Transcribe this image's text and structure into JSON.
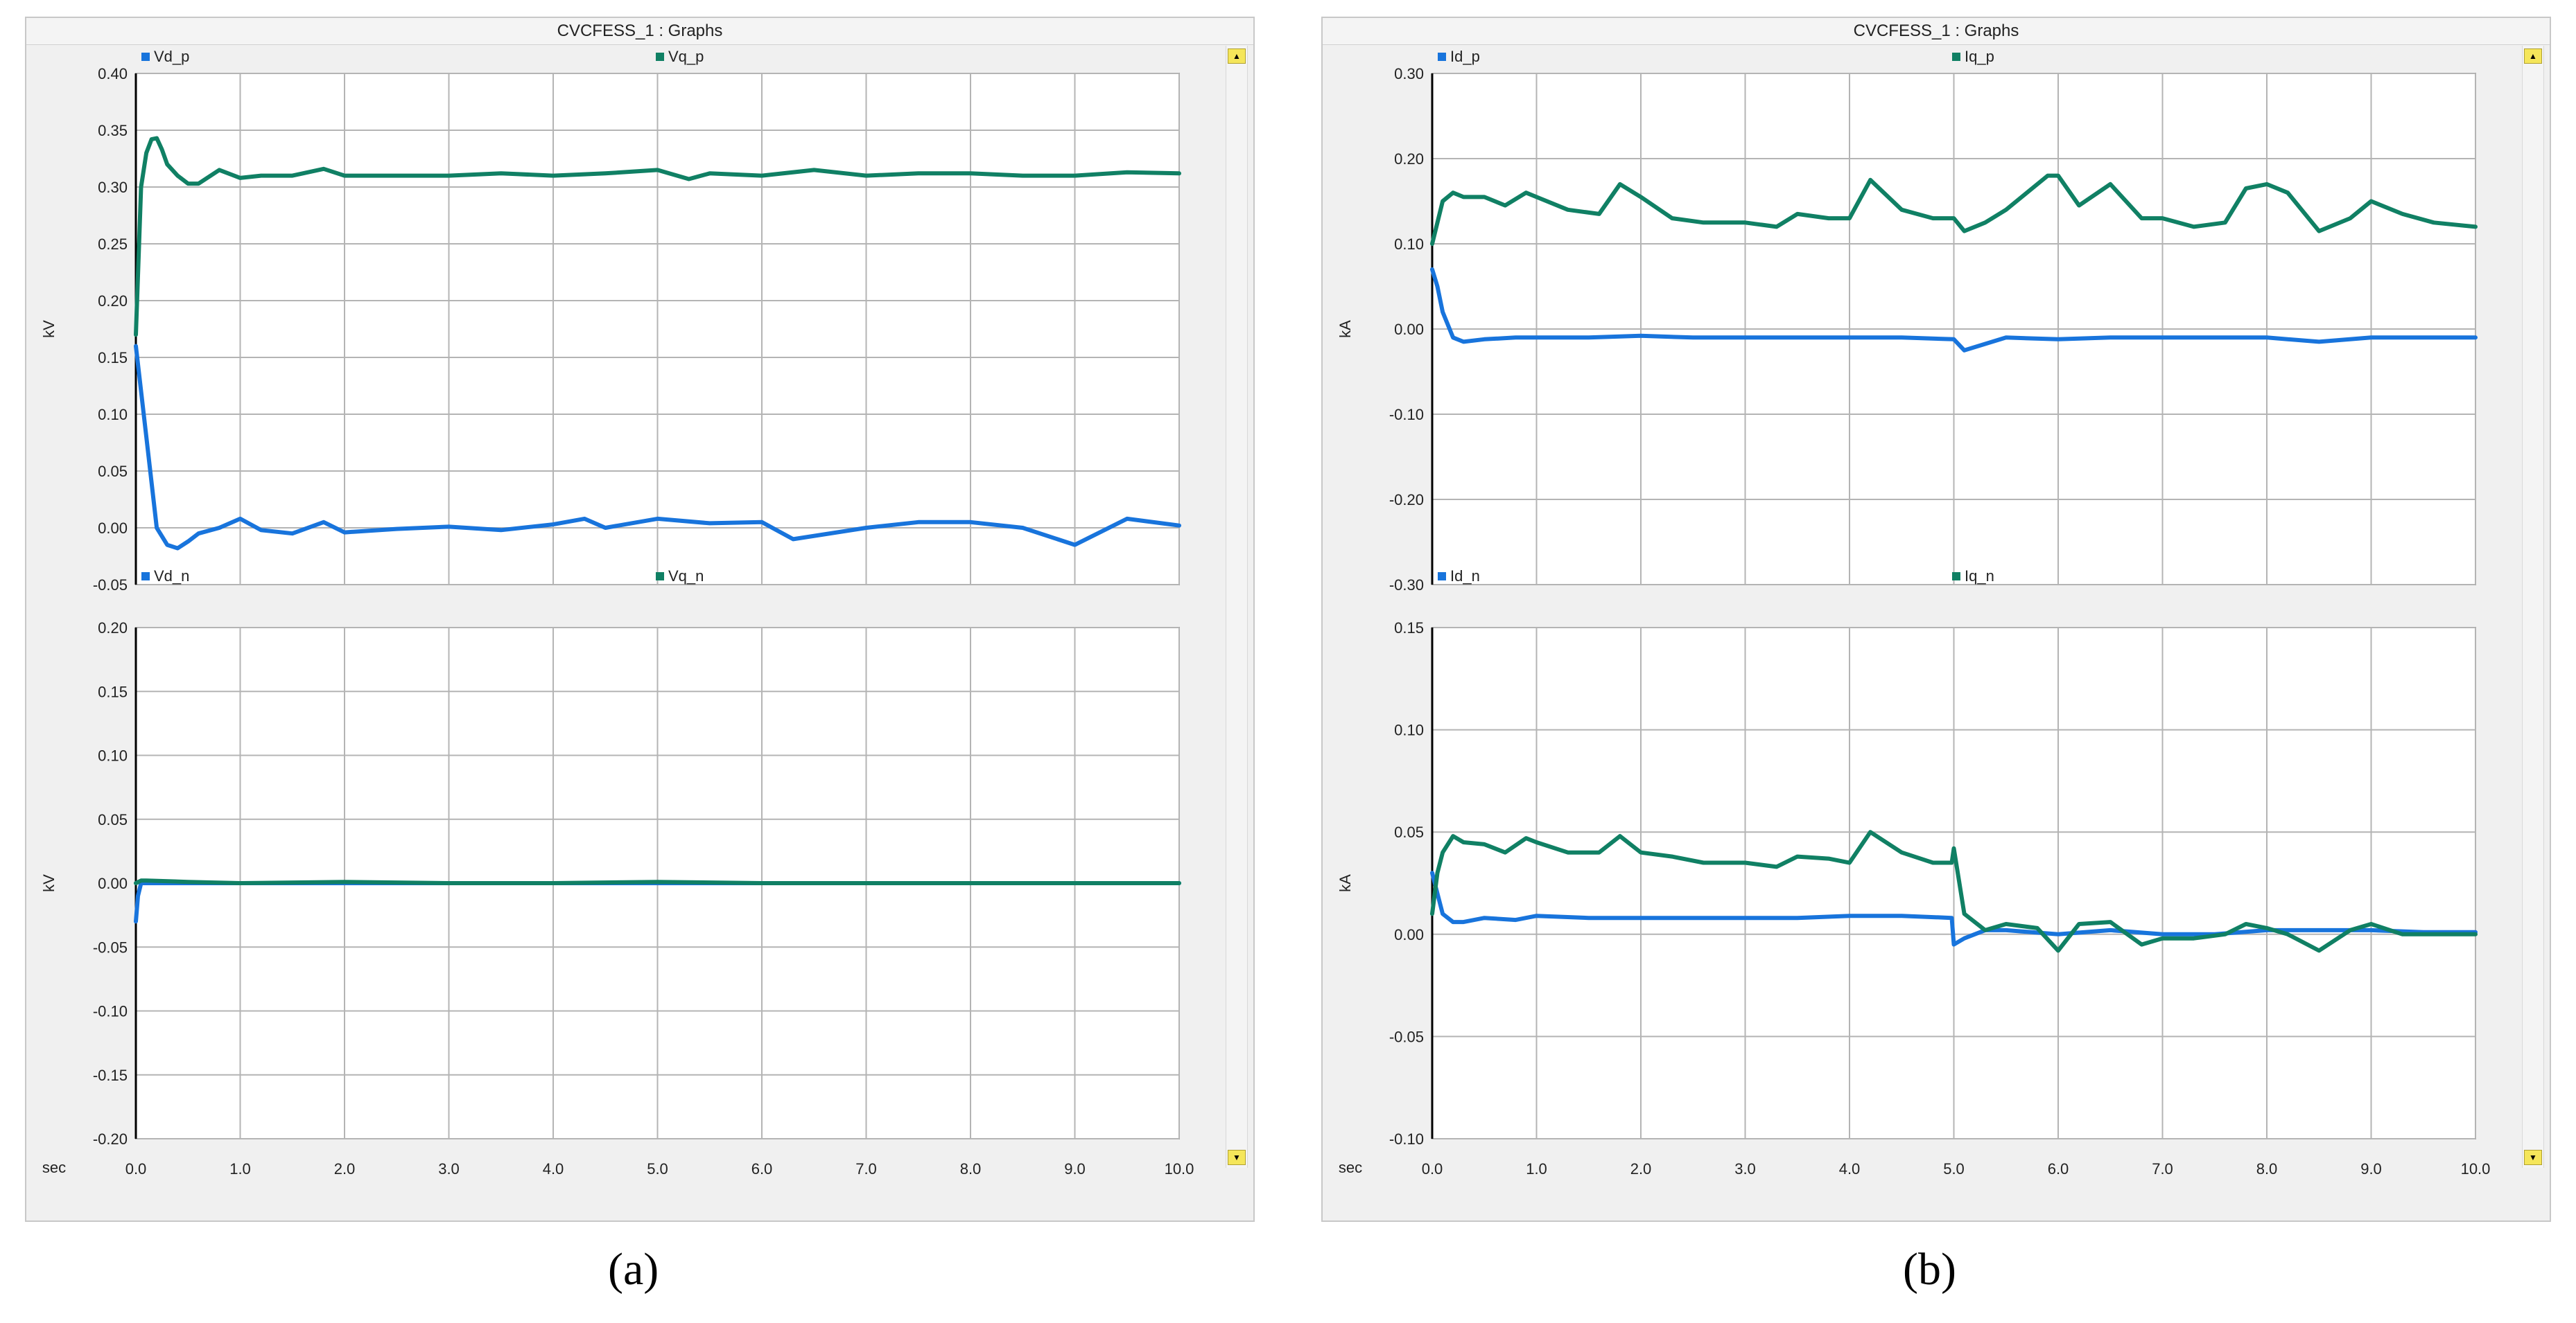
{
  "panels": [
    {
      "id": "a",
      "caption": "(a)",
      "window_title": "CVCFESS_1 : Graphs",
      "x_axis_label": "sec",
      "x_ticks": [
        "0.0",
        "1.0",
        "2.0",
        "3.0",
        "4.0",
        "5.0",
        "6.0",
        "7.0",
        "8.0",
        "9.0",
        "10.0"
      ],
      "graphs": [
        {
          "ylabel": "kV",
          "yticks": [
            "0.40",
            "0.35",
            "0.30",
            "0.25",
            "0.20",
            "0.15",
            "0.10",
            "0.05",
            "0.00",
            "-0.05"
          ],
          "ylim": [
            -0.05,
            0.4
          ],
          "legend": [
            "Vd_p",
            "Vq_p"
          ]
        },
        {
          "ylabel": "kV",
          "yticks": [
            "0.20",
            "0.15",
            "0.10",
            "0.05",
            "0.00",
            "-0.05",
            "-0.10",
            "-0.15",
            "-0.20"
          ],
          "ylim": [
            -0.2,
            0.2
          ],
          "legend": [
            "Vd_n",
            "Vq_n"
          ]
        }
      ]
    },
    {
      "id": "b",
      "caption": "(b)",
      "window_title": "CVCFESS_1 : Graphs",
      "x_axis_label": "sec",
      "x_ticks": [
        "0.0",
        "1.0",
        "2.0",
        "3.0",
        "4.0",
        "5.0",
        "6.0",
        "7.0",
        "8.0",
        "9.0",
        "10.0"
      ],
      "graphs": [
        {
          "ylabel": "kA",
          "yticks": [
            "0.30",
            "0.20",
            "0.10",
            "0.00",
            "-0.10",
            "-0.20",
            "-0.30"
          ],
          "ylim": [
            -0.3,
            0.3
          ],
          "legend": [
            "Id_p",
            "Iq_p"
          ]
        },
        {
          "ylabel": "kA",
          "yticks": [
            "0.15",
            "0.10",
            "0.05",
            "0.00",
            "-0.05",
            "-0.10"
          ],
          "ylim": [
            -0.1,
            0.15
          ],
          "legend": [
            "Id_n",
            "Iq_n"
          ]
        }
      ]
    }
  ],
  "colors": {
    "d_axis": "#1874dc",
    "q_axis": "#108064",
    "grid": "#b4b4b4",
    "plot_bg": "#ffffff",
    "frame_bg": "#f0f0f0"
  },
  "chart_data": [
    {
      "type": "line",
      "xlim": [
        0,
        10
      ],
      "ylim": [
        -0.05,
        0.4
      ],
      "xlabel": "sec",
      "ylabel": "kV",
      "grid": true,
      "legend": "top",
      "series": [
        {
          "name": "Vd_p",
          "x": [
            0,
            0.1,
            0.2,
            0.3,
            0.4,
            0.5,
            0.6,
            0.8,
            1.0,
            1.2,
            1.5,
            1.8,
            2.0,
            2.5,
            3.0,
            3.5,
            4.0,
            4.3,
            4.5,
            5.0,
            5.5,
            6.0,
            6.3,
            7.0,
            7.5,
            8.0,
            8.5,
            9.0,
            9.5,
            10.0
          ],
          "y": [
            0.16,
            0.08,
            0.0,
            -0.015,
            -0.018,
            -0.012,
            -0.005,
            0.0,
            0.008,
            -0.002,
            -0.005,
            0.005,
            -0.004,
            -0.001,
            0.001,
            -0.002,
            0.003,
            0.008,
            0.0,
            0.008,
            0.004,
            0.005,
            -0.01,
            0.0,
            0.005,
            0.005,
            0.0,
            -0.015,
            0.008,
            0.002
          ]
        },
        {
          "name": "Vq_p",
          "x": [
            0,
            0.05,
            0.1,
            0.15,
            0.2,
            0.25,
            0.3,
            0.4,
            0.5,
            0.6,
            0.8,
            1.0,
            1.2,
            1.5,
            1.8,
            2.0,
            2.5,
            3.0,
            3.5,
            4.0,
            4.5,
            5.0,
            5.3,
            5.5,
            6.0,
            6.5,
            7.0,
            7.5,
            8.0,
            8.5,
            9.0,
            9.5,
            10.0
          ],
          "y": [
            0.17,
            0.3,
            0.33,
            0.342,
            0.343,
            0.333,
            0.32,
            0.31,
            0.303,
            0.303,
            0.315,
            0.308,
            0.31,
            0.31,
            0.316,
            0.31,
            0.31,
            0.31,
            0.312,
            0.31,
            0.312,
            0.315,
            0.307,
            0.312,
            0.31,
            0.315,
            0.31,
            0.312,
            0.312,
            0.31,
            0.31,
            0.313,
            0.312
          ]
        }
      ]
    },
    {
      "type": "line",
      "xlim": [
        0,
        10
      ],
      "ylim": [
        -0.2,
        0.2
      ],
      "xlabel": "sec",
      "ylabel": "kV",
      "grid": true,
      "legend": "top",
      "series": [
        {
          "name": "Vd_n",
          "x": [
            0,
            0.02,
            0.05,
            0.1,
            1,
            2,
            3,
            4,
            5,
            6,
            7,
            8,
            9,
            10
          ],
          "y": [
            -0.03,
            -0.01,
            0.0,
            0.0,
            0.0,
            0.0,
            0.0,
            0.0,
            0.0,
            0.0,
            0.0,
            0.0,
            0.0,
            0.0
          ]
        },
        {
          "name": "Vq_n",
          "x": [
            0,
            0.05,
            0.1,
            0.5,
            1,
            2,
            3,
            4,
            5,
            6,
            7,
            8,
            9,
            10
          ],
          "y": [
            0.0,
            0.002,
            0.002,
            0.001,
            0.0,
            0.001,
            0.0,
            0.0,
            0.001,
            0.0,
            0.0,
            0.0,
            0.0,
            0.0
          ]
        }
      ]
    },
    {
      "type": "line",
      "xlim": [
        0,
        10
      ],
      "ylim": [
        -0.3,
        0.3
      ],
      "xlabel": "sec",
      "ylabel": "kA",
      "grid": true,
      "legend": "top",
      "series": [
        {
          "name": "Id_p",
          "x": [
            0,
            0.05,
            0.1,
            0.2,
            0.3,
            0.5,
            0.8,
            1.0,
            1.5,
            2.0,
            2.5,
            3.0,
            3.5,
            4.0,
            4.5,
            5.0,
            5.1,
            5.5,
            6.0,
            6.5,
            7.0,
            7.5,
            8.0,
            8.5,
            9.0,
            9.5,
            10.0
          ],
          "y": [
            0.07,
            0.05,
            0.02,
            -0.01,
            -0.015,
            -0.012,
            -0.01,
            -0.01,
            -0.01,
            -0.008,
            -0.01,
            -0.01,
            -0.01,
            -0.01,
            -0.01,
            -0.012,
            -0.025,
            -0.01,
            -0.012,
            -0.01,
            -0.01,
            -0.01,
            -0.01,
            -0.015,
            -0.01,
            -0.01,
            -0.01
          ]
        },
        {
          "name": "Iq_p",
          "x": [
            0,
            0.1,
            0.2,
            0.3,
            0.5,
            0.7,
            0.9,
            1.0,
            1.3,
            1.6,
            1.8,
            2.0,
            2.3,
            2.6,
            3.0,
            3.3,
            3.5,
            3.8,
            4.0,
            4.2,
            4.5,
            4.8,
            5.0,
            5.1,
            5.3,
            5.5,
            5.7,
            5.9,
            6.0,
            6.2,
            6.5,
            6.8,
            7.0,
            7.3,
            7.6,
            7.8,
            8.0,
            8.2,
            8.5,
            8.8,
            9.0,
            9.3,
            9.6,
            10.0
          ],
          "y": [
            0.1,
            0.15,
            0.16,
            0.155,
            0.155,
            0.145,
            0.16,
            0.155,
            0.14,
            0.135,
            0.17,
            0.155,
            0.13,
            0.125,
            0.125,
            0.12,
            0.135,
            0.13,
            0.13,
            0.175,
            0.14,
            0.13,
            0.13,
            0.115,
            0.125,
            0.14,
            0.16,
            0.18,
            0.18,
            0.145,
            0.17,
            0.13,
            0.13,
            0.12,
            0.125,
            0.165,
            0.17,
            0.16,
            0.115,
            0.13,
            0.15,
            0.135,
            0.125,
            0.12
          ]
        }
      ]
    },
    {
      "type": "line",
      "xlim": [
        0,
        10
      ],
      "ylim": [
        -0.1,
        0.15
      ],
      "xlabel": "sec",
      "ylabel": "kA",
      "grid": true,
      "legend": "top",
      "series": [
        {
          "name": "Id_n",
          "x": [
            0,
            0.05,
            0.1,
            0.2,
            0.3,
            0.5,
            0.8,
            1.0,
            1.5,
            2.0,
            2.5,
            3.0,
            3.5,
            4.0,
            4.5,
            4.98,
            5.0,
            5.1,
            5.3,
            5.5,
            6.0,
            6.5,
            7.0,
            7.5,
            8.0,
            8.5,
            9.0,
            9.5,
            10.0
          ],
          "y": [
            0.03,
            0.02,
            0.01,
            0.006,
            0.006,
            0.008,
            0.007,
            0.009,
            0.008,
            0.008,
            0.008,
            0.008,
            0.008,
            0.009,
            0.009,
            0.008,
            -0.005,
            -0.002,
            0.002,
            0.002,
            0.0,
            0.002,
            0.0,
            0.0,
            0.002,
            0.002,
            0.002,
            0.001,
            0.001
          ]
        },
        {
          "name": "Iq_n",
          "x": [
            0,
            0.05,
            0.1,
            0.2,
            0.3,
            0.5,
            0.7,
            0.9,
            1.0,
            1.3,
            1.6,
            1.8,
            2.0,
            2.3,
            2.6,
            3.0,
            3.3,
            3.5,
            3.8,
            4.0,
            4.2,
            4.5,
            4.8,
            4.98,
            5.0,
            5.1,
            5.3,
            5.5,
            5.8,
            6.0,
            6.2,
            6.5,
            6.8,
            7.0,
            7.3,
            7.6,
            7.8,
            8.0,
            8.2,
            8.5,
            8.8,
            9.0,
            9.3,
            9.6,
            10.0
          ],
          "y": [
            0.01,
            0.03,
            0.04,
            0.048,
            0.045,
            0.044,
            0.04,
            0.047,
            0.045,
            0.04,
            0.04,
            0.048,
            0.04,
            0.038,
            0.035,
            0.035,
            0.033,
            0.038,
            0.037,
            0.035,
            0.05,
            0.04,
            0.035,
            0.035,
            0.042,
            0.01,
            0.002,
            0.005,
            0.003,
            -0.008,
            0.005,
            0.006,
            -0.005,
            -0.002,
            -0.002,
            0.0,
            0.005,
            0.003,
            0.0,
            -0.008,
            0.002,
            0.005,
            0.0,
            0.0,
            0.0
          ]
        }
      ]
    }
  ]
}
